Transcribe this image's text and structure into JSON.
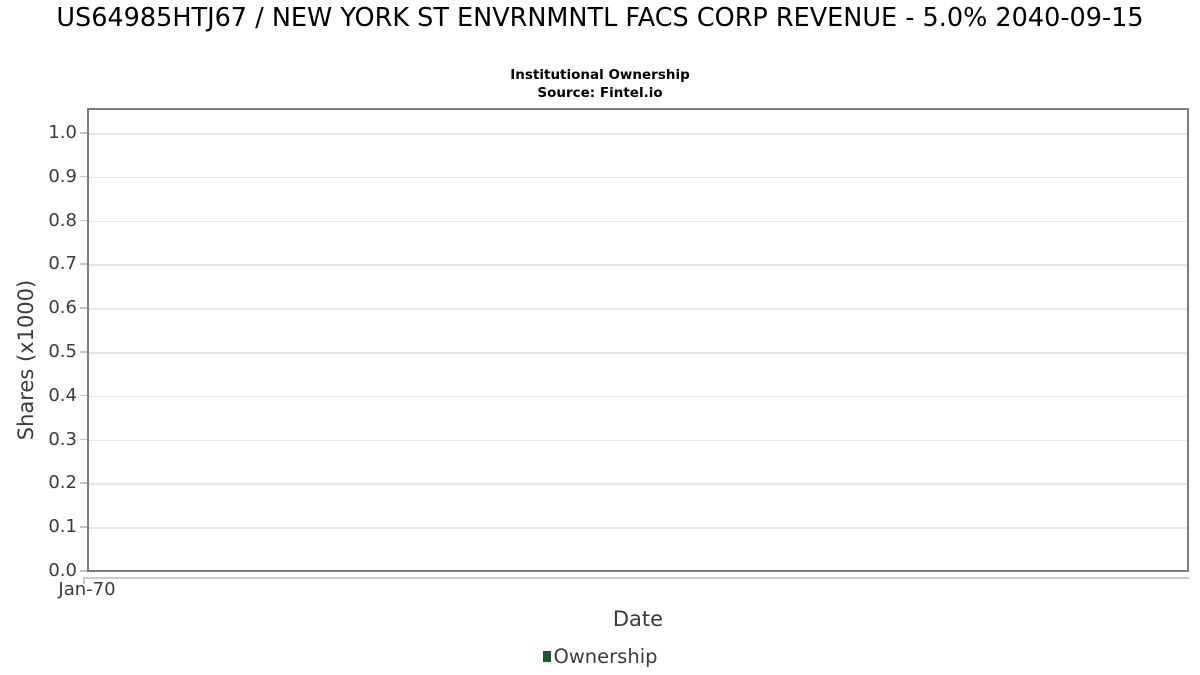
{
  "header": {
    "title": "US64985HTJ67 / NEW YORK ST ENVRNMNTL FACS CORP REVENUE - 5.0% 2040-09-15",
    "subtitle": "Institutional Ownership",
    "source": "Source: Fintel.io"
  },
  "colors": {
    "plot_border": "#7c7c7c",
    "gridline": "#e5e5e5",
    "tick_mark": "#c4c4c4",
    "axis_line": "#c9c9c9",
    "text_gray": "#3b3b3b",
    "title_black": "#000000",
    "legend_green": "#1d5630"
  },
  "chart_data": {
    "type": "line",
    "title": "US64985HTJ67 / NEW YORK ST ENVRNMNTL FACS CORP REVENUE - 5.0% 2040-09-15",
    "subtitle": "Institutional Ownership",
    "source": "Source: Fintel.io",
    "xlabel": "Date",
    "ylabel": "Shares (x1000)",
    "ylim": [
      0.0,
      1.057
    ],
    "grid": true,
    "grid_axis": "y",
    "y_ticks": [
      {
        "value": 0.0,
        "label": "0.0"
      },
      {
        "value": 0.1,
        "label": "0.1"
      },
      {
        "value": 0.2,
        "label": "0.2"
      },
      {
        "value": 0.3,
        "label": "0.3"
      },
      {
        "value": 0.4,
        "label": "0.4"
      },
      {
        "value": 0.5,
        "label": "0.5"
      },
      {
        "value": 0.6,
        "label": "0.6"
      },
      {
        "value": 0.7,
        "label": "0.7"
      },
      {
        "value": 0.8,
        "label": "0.8"
      },
      {
        "value": 0.9,
        "label": "0.9"
      },
      {
        "value": 1.0,
        "label": "1.0"
      }
    ],
    "x_ticks": [
      {
        "label": "Jan-70",
        "position": 0.0
      }
    ],
    "legend": {
      "position": "bottom",
      "entries": [
        {
          "label": "Ownership",
          "color": "#1d5630"
        }
      ]
    },
    "series": [
      {
        "name": "Ownership",
        "x": [],
        "y": []
      }
    ]
  }
}
